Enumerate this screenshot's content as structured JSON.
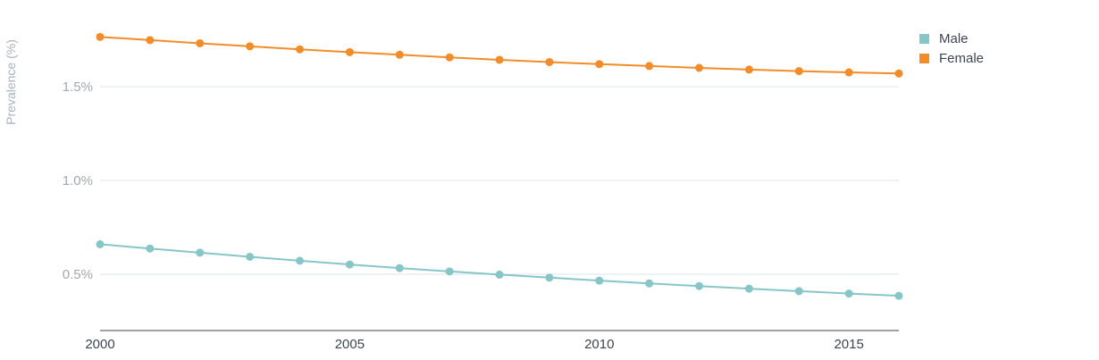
{
  "chart_data": {
    "type": "line",
    "title": "",
    "xlabel": "",
    "ylabel": "Prevalence (%)",
    "x": [
      2000,
      2001,
      2002,
      2003,
      2004,
      2005,
      2006,
      2007,
      2008,
      2009,
      2010,
      2011,
      2012,
      2013,
      2014,
      2015,
      2016
    ],
    "xlim": [
      2000,
      2016
    ],
    "ylim": [
      0.2,
      1.85
    ],
    "x_ticks": [
      2000,
      2005,
      2010,
      2015
    ],
    "y_ticks": [
      0.5,
      1.0,
      1.5
    ],
    "x_tick_labels": [
      "2000",
      "2005",
      "2010",
      "2015"
    ],
    "y_tick_labels": [
      "0.5%",
      "1.0%",
      "1.5%"
    ],
    "grid": true,
    "legend_position": "top-right",
    "series": [
      {
        "name": "Male",
        "color": "#87c6c8",
        "values": [
          0.66,
          0.637,
          0.615,
          0.593,
          0.572,
          0.552,
          0.533,
          0.515,
          0.498,
          0.482,
          0.466,
          0.451,
          0.437,
          0.423,
          0.41,
          0.397,
          0.385
        ]
      },
      {
        "name": "Female",
        "color": "#f28c28",
        "values": [
          1.765,
          1.748,
          1.731,
          1.715,
          1.699,
          1.684,
          1.67,
          1.656,
          1.643,
          1.631,
          1.62,
          1.61,
          1.6,
          1.591,
          1.583,
          1.576,
          1.57
        ]
      }
    ]
  }
}
